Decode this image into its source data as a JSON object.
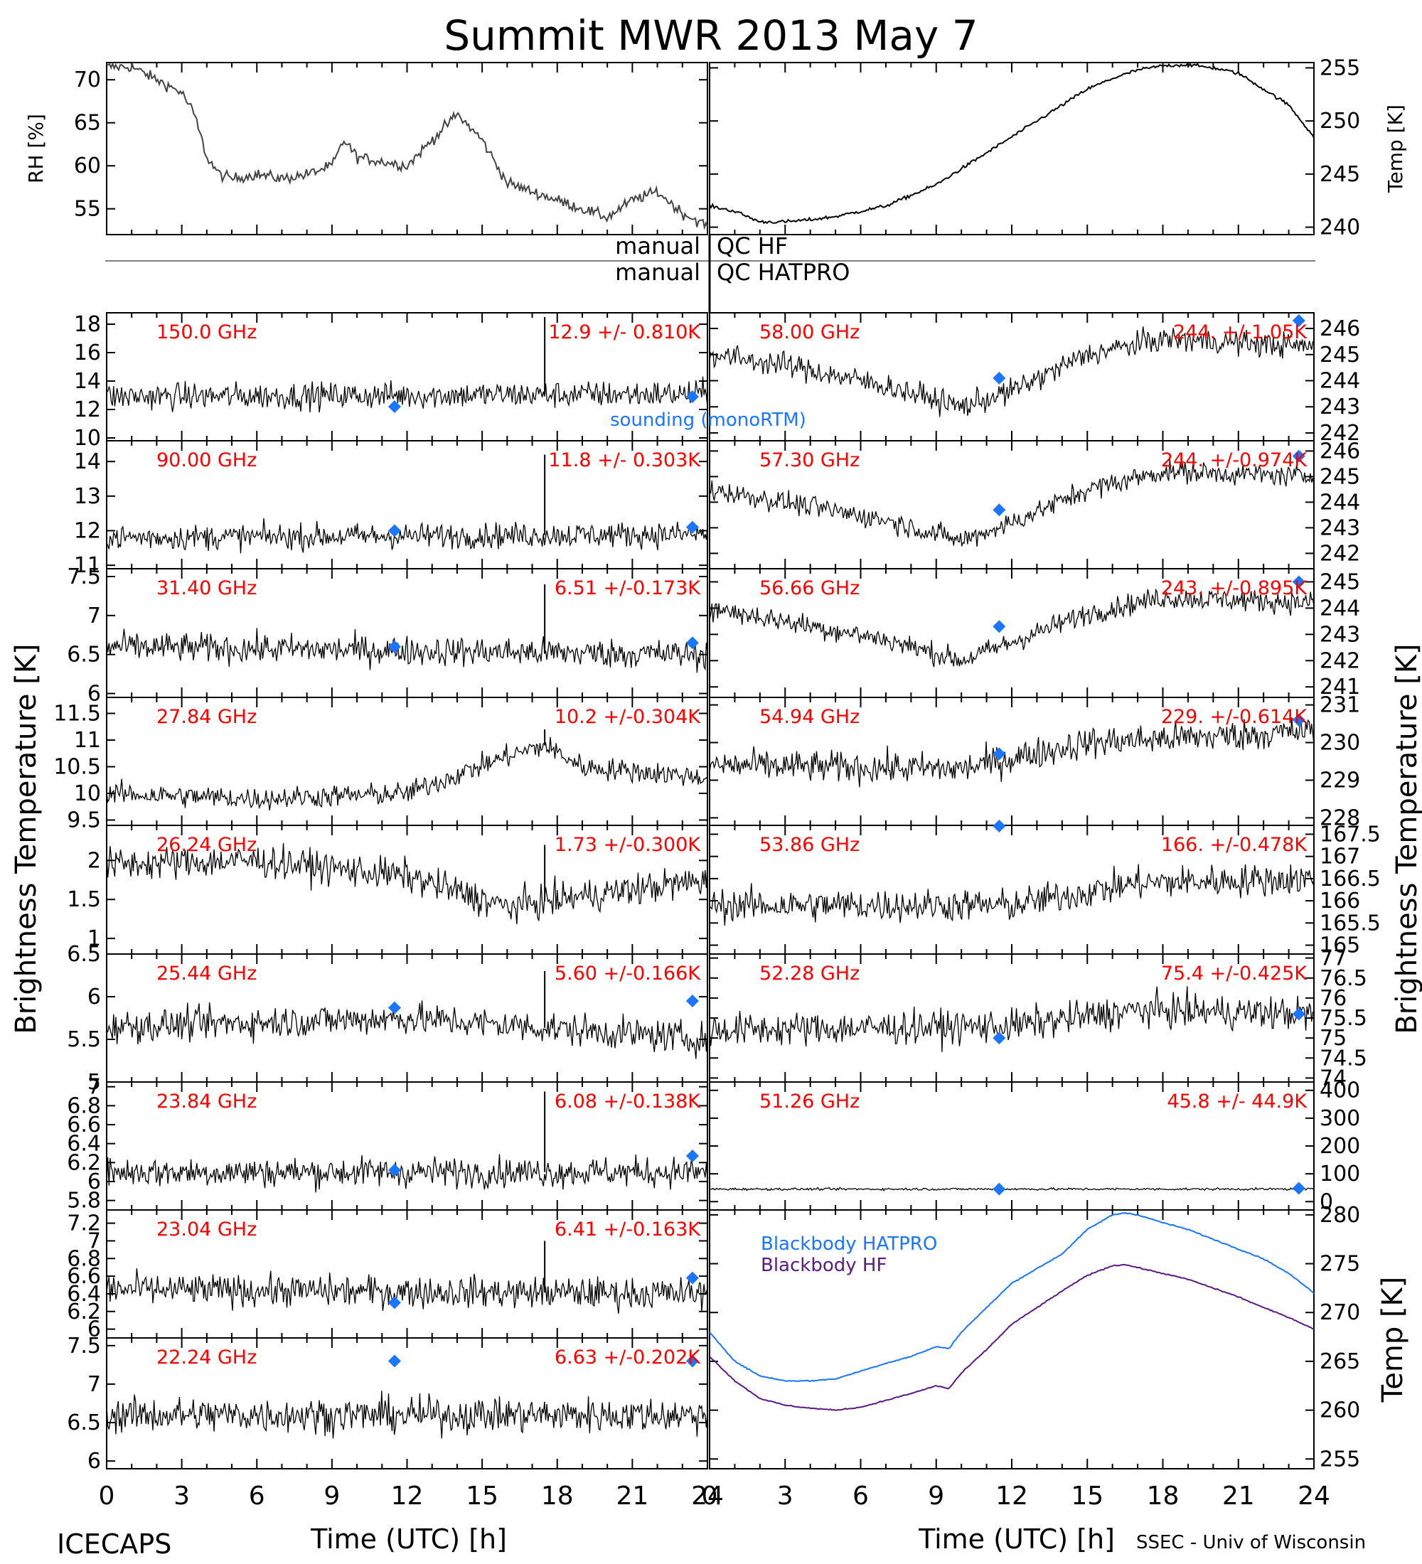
{
  "title": "Summit MWR 2013 May  7",
  "footer_left": "ICECAPS",
  "footer_right": "SSEC - Univ of Wisconsin",
  "x_axis_label": "Time (UTC) [h]",
  "y_axis_label_left": "Brightness Temperature [K]",
  "y_axis_label_right": "Brightness Temperature [K]",
  "colors": {
    "text": "#000000",
    "frequency_label": "#ff0000",
    "sounding": "#1a75ff",
    "bb_hatpro": "#1a75ff",
    "bb_hf": "#5b1a82"
  },
  "qc_labels": {
    "hf_left": "manual",
    "hf_right": "QC HF",
    "hatpro_left": "manual",
    "hatpro_right": "QC HATPRO"
  },
  "chart_data": [
    {
      "type": "line",
      "panel": "rh",
      "ylabel": "RH [%]",
      "ylim": [
        52,
        72
      ],
      "yticks": [
        55,
        60,
        65,
        70
      ],
      "xlim": [
        0,
        24
      ],
      "series": [
        {
          "x": [
            0,
            1,
            2,
            3,
            3.5,
            4,
            4.5,
            5,
            6,
            7,
            8,
            9,
            9.5,
            10,
            11,
            12,
            13,
            14,
            15,
            16,
            17,
            18,
            19,
            20,
            21,
            22,
            23,
            24
          ],
          "values": [
            71.5,
            71.5,
            70,
            68.5,
            66,
            61,
            59,
            58.5,
            59,
            58.5,
            59,
            60,
            63,
            61,
            60.5,
            60,
            63,
            66,
            63,
            58,
            57,
            56,
            55,
            54,
            56,
            57,
            54.5,
            53
          ]
        }
      ]
    },
    {
      "type": "line",
      "panel": "temp",
      "ylabel": "Temp [K]",
      "ylim": [
        239.3,
        255.5
      ],
      "yticks": [
        240,
        245,
        250,
        255
      ],
      "xlim": [
        0,
        24
      ],
      "series": [
        {
          "x": [
            0,
            1,
            2,
            3,
            4,
            5,
            6,
            7,
            8,
            9,
            10,
            11,
            12,
            13,
            14,
            15,
            16,
            17,
            18,
            19,
            20,
            21,
            22,
            23,
            24
          ],
          "values": [
            242,
            241.5,
            240.5,
            240.5,
            240.7,
            241,
            241.5,
            242,
            243,
            244,
            245.5,
            247,
            248.5,
            250,
            251.5,
            253,
            254,
            254.8,
            255.2,
            255.3,
            255,
            254.5,
            253,
            251.5,
            248.5
          ]
        }
      ]
    },
    {
      "type": "scatter",
      "side": "left",
      "freq": "150.0 GHz",
      "stats": "12.9 +/- 0.810K",
      "ylim": [
        9.8,
        18.8
      ],
      "yticks": [
        10,
        12,
        14,
        16,
        18
      ],
      "baseline": [
        [
          0,
          12.9
        ],
        [
          24,
          13.1
        ]
      ],
      "noise": 0.9,
      "spikes": [
        {
          "x": 17.5,
          "value": 18.5
        }
      ],
      "sounding": [
        {
          "x": 11.5,
          "value": 12.2
        },
        {
          "x": 23.4,
          "value": 12.9
        }
      ]
    },
    {
      "type": "scatter",
      "side": "left",
      "freq": "90.00 GHz",
      "stats": "11.8 +/- 0.303K",
      "ylim": [
        10.9,
        14.6
      ],
      "yticks": [
        11,
        12,
        13,
        14
      ],
      "baseline": [
        [
          0,
          11.8
        ],
        [
          24,
          11.9
        ]
      ],
      "noise": 0.35,
      "spikes": [
        {
          "x": 17.5,
          "value": 14.2
        }
      ],
      "sounding": [
        {
          "x": 11.5,
          "value": 12.0
        },
        {
          "x": 23.4,
          "value": 12.1
        }
      ]
    },
    {
      "type": "scatter",
      "side": "left",
      "freq": "31.40 GHz",
      "stats": "6.51 +/-0.173K",
      "ylim": [
        5.95,
        7.6
      ],
      "yticks": [
        6.0,
        6.5,
        7.0,
        7.5
      ],
      "baseline": [
        [
          0,
          6.6
        ],
        [
          24,
          6.5
        ]
      ],
      "noise": 0.18,
      "spikes": [
        {
          "x": 17.5,
          "value": 7.4
        }
      ],
      "sounding": [
        {
          "x": 11.5,
          "value": 6.6
        },
        {
          "x": 23.4,
          "value": 6.65
        }
      ]
    },
    {
      "type": "scatter",
      "side": "left",
      "freq": "27.84 GHz",
      "stats": "10.2 +/-0.304K",
      "ylim": [
        9.4,
        11.8
      ],
      "yticks": [
        9.5,
        10.0,
        10.5,
        11.0,
        11.5
      ],
      "baseline": [
        [
          0,
          10.0
        ],
        [
          6,
          9.9
        ],
        [
          12,
          10.0
        ],
        [
          16,
          10.7
        ],
        [
          17.5,
          10.9
        ],
        [
          19,
          10.5
        ],
        [
          24,
          10.3
        ]
      ],
      "noise": 0.2,
      "spikes": [
        {
          "x": 17.5,
          "value": 11.2
        }
      ],
      "sounding": []
    },
    {
      "type": "scatter",
      "side": "left",
      "freq": "26.24 GHz",
      "stats": "1.73 +/-0.300K",
      "ylim": [
        0.8,
        2.45
      ],
      "yticks": [
        1.0,
        1.5,
        2.0
      ],
      "baseline": [
        [
          0,
          1.95
        ],
        [
          6,
          2.0
        ],
        [
          12,
          1.8
        ],
        [
          16,
          1.4
        ],
        [
          18,
          1.5
        ],
        [
          24,
          1.75
        ]
      ],
      "noise": 0.2,
      "spikes": [
        {
          "x": 17.5,
          "value": 2.2
        }
      ],
      "sounding": []
    },
    {
      "type": "scatter",
      "side": "left",
      "freq": "25.44 GHz",
      "stats": "5.60 +/-0.166K",
      "ylim": [
        5.0,
        6.5
      ],
      "yticks": [
        5.0,
        5.5,
        6.0,
        6.5
      ],
      "baseline": [
        [
          0,
          5.65
        ],
        [
          12,
          5.75
        ],
        [
          24,
          5.5
        ]
      ],
      "noise": 0.18,
      "spikes": [
        {
          "x": 17.5,
          "value": 6.3
        }
      ],
      "sounding": [
        {
          "x": 11.5,
          "value": 5.87
        },
        {
          "x": 23.4,
          "value": 5.95
        }
      ]
    },
    {
      "type": "scatter",
      "side": "left",
      "freq": "23.84 GHz",
      "stats": "6.08 +/-0.138K",
      "ylim": [
        5.7,
        7.05
      ],
      "yticks": [
        5.8,
        6.0,
        6.2,
        6.4,
        6.6,
        6.8,
        7.0
      ],
      "baseline": [
        [
          0,
          6.1
        ],
        [
          24,
          6.1
        ]
      ],
      "noise": 0.15,
      "spikes": [
        {
          "x": 17.5,
          "value": 6.95
        }
      ],
      "sounding": [
        {
          "x": 11.5,
          "value": 6.12
        },
        {
          "x": 23.4,
          "value": 6.27
        }
      ]
    },
    {
      "type": "scatter",
      "side": "left",
      "freq": "23.04 GHz",
      "stats": "6.41 +/-0.163K",
      "ylim": [
        5.9,
        7.35
      ],
      "yticks": [
        6.0,
        6.2,
        6.4,
        6.6,
        6.8,
        7.0,
        7.2
      ],
      "baseline": [
        [
          0,
          6.45
        ],
        [
          24,
          6.4
        ]
      ],
      "noise": 0.17,
      "spikes": [
        {
          "x": 17.5,
          "value": 7.0
        }
      ],
      "sounding": [
        {
          "x": 11.5,
          "value": 6.3
        },
        {
          "x": 23.4,
          "value": 6.58
        }
      ]
    },
    {
      "type": "scatter",
      "side": "left",
      "freq": "22.24 GHz",
      "stats": "6.63 +/-0.202K",
      "ylim": [
        5.9,
        7.6
      ],
      "yticks": [
        6.0,
        6.5,
        7.0,
        7.5
      ],
      "baseline": [
        [
          0,
          6.6
        ],
        [
          24,
          6.6
        ]
      ],
      "noise": 0.22,
      "spikes": [],
      "sounding": [
        {
          "x": 11.5,
          "value": 7.3
        },
        {
          "x": 23.4,
          "value": 7.3
        }
      ]
    },
    {
      "type": "scatter",
      "side": "right",
      "freq": "58.00 GHz",
      "stats": "244. +/-1.05K",
      "ylim": [
        241.7,
        246.6
      ],
      "yticks": [
        242,
        243,
        244,
        245,
        246
      ],
      "baseline": [
        [
          0,
          245
        ],
        [
          3,
          244.6
        ],
        [
          7,
          243.8
        ],
        [
          10,
          243
        ],
        [
          12,
          243.6
        ],
        [
          15,
          245
        ],
        [
          18,
          245.6
        ],
        [
          24,
          245.3
        ]
      ],
      "noise": 0.45,
      "spikes": [],
      "sounding": [
        {
          "x": 11.5,
          "value": 244.1
        },
        {
          "x": 23.4,
          "value": 246.3
        }
      ]
    },
    {
      "type": "scatter",
      "side": "right",
      "freq": "57.30 GHz",
      "stats": "244. +/-0.974K",
      "ylim": [
        241.4,
        246.4
      ],
      "yticks": [
        242,
        243,
        244,
        245,
        246
      ],
      "baseline": [
        [
          0,
          244.5
        ],
        [
          3,
          244
        ],
        [
          7,
          243.3
        ],
        [
          10,
          242.5
        ],
        [
          12,
          243.2
        ],
        [
          15,
          244.5
        ],
        [
          18,
          245.2
        ],
        [
          24,
          245
        ]
      ],
      "noise": 0.4,
      "spikes": [],
      "sounding": [
        {
          "x": 11.5,
          "value": 243.7
        },
        {
          "x": 23.4,
          "value": 245.8
        }
      ]
    },
    {
      "type": "scatter",
      "side": "right",
      "freq": "56.66 GHz",
      "stats": "243. +/-0.895K",
      "ylim": [
        240.6,
        245.5
      ],
      "yticks": [
        241,
        242,
        243,
        244,
        245
      ],
      "baseline": [
        [
          0,
          244
        ],
        [
          3,
          243.5
        ],
        [
          7,
          242.8
        ],
        [
          10,
          242
        ],
        [
          12,
          242.7
        ],
        [
          15,
          243.8
        ],
        [
          18,
          244.4
        ],
        [
          24,
          244.2
        ]
      ],
      "noise": 0.4,
      "spikes": [],
      "sounding": [
        {
          "x": 11.5,
          "value": 243.3
        },
        {
          "x": 23.4,
          "value": 245.0
        }
      ]
    },
    {
      "type": "scatter",
      "side": "right",
      "freq": "54.94 GHz",
      "stats": "229. +/-0.614K",
      "ylim": [
        227.8,
        231.2
      ],
      "yticks": [
        228,
        229,
        230,
        231
      ],
      "baseline": [
        [
          0,
          229.4
        ],
        [
          10,
          229.3
        ],
        [
          15,
          230
        ],
        [
          24,
          230.3
        ]
      ],
      "noise": 0.4,
      "spikes": [],
      "sounding": [
        {
          "x": 11.5,
          "value": 229.7
        },
        {
          "x": 23.4,
          "value": 230.6
        }
      ]
    },
    {
      "type": "scatter",
      "side": "right",
      "freq": "53.86 GHz",
      "stats": "166. +/-0.478K",
      "ylim": [
        164.8,
        167.7
      ],
      "yticks": [
        165.0,
        165.5,
        166.0,
        166.5,
        167.0,
        167.5
      ],
      "baseline": [
        [
          0,
          165.9
        ],
        [
          12,
          165.9
        ],
        [
          17,
          166.4
        ],
        [
          24,
          166.5
        ]
      ],
      "noise": 0.35,
      "spikes": [],
      "sounding": [
        {
          "x": 11.5,
          "value": 167.7
        }
      ]
    },
    {
      "type": "scatter",
      "side": "right",
      "freq": "52.28 GHz",
      "stats": "75.4 +/-0.425K",
      "ylim": [
        73.9,
        77.1
      ],
      "yticks": [
        74.0,
        74.5,
        75.0,
        75.5,
        76.0,
        76.5,
        77.0
      ],
      "baseline": [
        [
          0,
          75.2
        ],
        [
          12,
          75.3
        ],
        [
          17,
          75.7
        ],
        [
          24,
          75.6
        ]
      ],
      "noise": 0.4,
      "spikes": [],
      "sounding": [
        {
          "x": 11.5,
          "value": 75.0
        },
        {
          "x": 23.4,
          "value": 75.6
        }
      ]
    },
    {
      "type": "scatter",
      "side": "right",
      "freq": "51.26 GHz",
      "stats": "45.8 +/- 44.9K",
      "ylim": [
        -30,
        430
      ],
      "yticks": [
        0,
        100,
        200,
        300,
        400
      ],
      "baseline": [
        [
          0,
          45
        ],
        [
          24,
          45
        ]
      ],
      "noise": 4,
      "spikes": [],
      "sounding": [
        {
          "x": 11.5,
          "value": 45
        },
        {
          "x": 23.4,
          "value": 48
        }
      ]
    },
    {
      "type": "line",
      "panel": "blackbody",
      "ylabel": "Temp [K]",
      "ylim": [
        254,
        280.5
      ],
      "yticks": [
        255,
        260,
        265,
        270,
        275,
        280
      ],
      "xlim": [
        0,
        24
      ],
      "series": [
        {
          "name": "Blackbody HATPRO",
          "color": "#1a75ff",
          "x": [
            0,
            1,
            2,
            3,
            4,
            5,
            6,
            7,
            8,
            9,
            9.5,
            10,
            11,
            12,
            13,
            14,
            15,
            16,
            16.5,
            17,
            18,
            19,
            20,
            21,
            22,
            23,
            24
          ],
          "values": [
            268,
            265,
            263.5,
            263,
            263,
            263.2,
            264,
            264.8,
            265.5,
            266.5,
            266.3,
            268,
            270.5,
            273,
            274.5,
            276,
            278.5,
            280,
            280.2,
            280,
            279.2,
            278.5,
            277.5,
            276.5,
            275.5,
            274,
            272
          ]
        },
        {
          "name": "Blackbody HF",
          "color": "#5b1a82",
          "x": [
            0,
            1,
            2,
            3,
            4,
            5,
            6,
            7,
            8,
            9,
            9.5,
            10,
            11,
            12,
            13,
            14,
            15,
            16,
            16.5,
            17,
            18,
            19,
            20,
            21,
            22,
            23,
            24
          ],
          "values": [
            265.5,
            263,
            261.2,
            260.5,
            260.2,
            260,
            260.3,
            261,
            261.7,
            262.5,
            262.2,
            263.8,
            266.2,
            268.8,
            270.5,
            272.2,
            273.8,
            274.8,
            274.9,
            274.6,
            274,
            273.4,
            272.5,
            271.6,
            270.5,
            269.5,
            268.3
          ]
        }
      ]
    }
  ],
  "sounding_label": "sounding (monoRTM)",
  "x_ticks": [
    "0",
    "3",
    "6",
    "9",
    "12",
    "15",
    "18",
    "21",
    "24"
  ]
}
